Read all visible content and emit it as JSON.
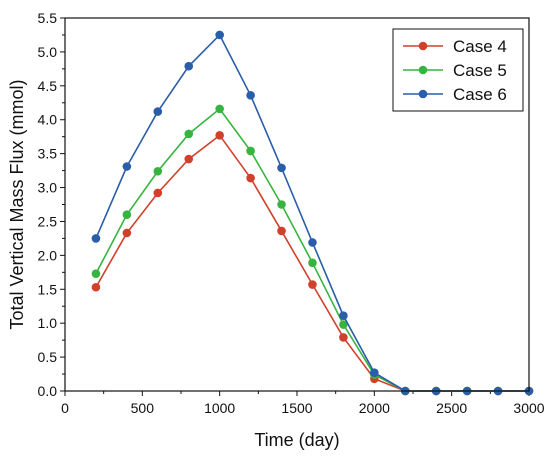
{
  "chart_data": {
    "type": "line",
    "xlabel": "Time (day)",
    "ylabel": "Total Vertical Mass Flux (mmol)",
    "xlim": [
      0,
      3000
    ],
    "ylim": [
      0,
      5.5
    ],
    "xticks": [
      0,
      500,
      1000,
      1500,
      2000,
      2500,
      3000
    ],
    "yticks": [
      0.0,
      0.5,
      1.0,
      1.5,
      2.0,
      2.5,
      3.0,
      3.5,
      4.0,
      4.5,
      5.0,
      5.5
    ],
    "grid": false,
    "legend_position": "top-right",
    "x": [
      200,
      400,
      600,
      800,
      1000,
      1200,
      1400,
      1600,
      1800,
      2000,
      2200,
      2400,
      2600,
      2800,
      3000
    ],
    "series": [
      {
        "name": "Case 4",
        "color": "#d0412b",
        "values": [
          1.53,
          2.33,
          2.92,
          3.42,
          3.77,
          3.14,
          2.36,
          1.57,
          0.79,
          0.18,
          0.0,
          0.0,
          0.0,
          0.0,
          0.0
        ]
      },
      {
        "name": "Case 5",
        "color": "#37b43f",
        "values": [
          1.73,
          2.6,
          3.24,
          3.79,
          4.16,
          3.54,
          2.75,
          1.89,
          0.98,
          0.24,
          0.0,
          0.0,
          0.0,
          0.0,
          0.0
        ]
      },
      {
        "name": "Case 6",
        "color": "#2b5ea8",
        "values": [
          2.25,
          3.31,
          4.12,
          4.79,
          5.25,
          4.36,
          3.29,
          2.19,
          1.11,
          0.27,
          0.0,
          0.0,
          0.0,
          0.0,
          0.0
        ]
      }
    ]
  }
}
